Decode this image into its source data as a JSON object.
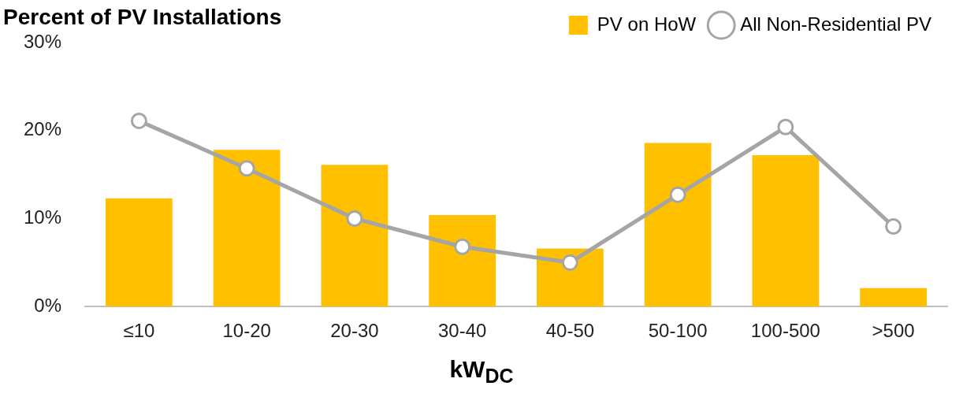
{
  "chart_data": {
    "type": "bar",
    "title": "Percent of PV Installations",
    "xlabel": "kW$_{DC}$",
    "categories": [
      "≤10",
      "10-20",
      "20-30",
      "30-40",
      "40-50",
      "50-100",
      "100-500",
      ">500"
    ],
    "series": [
      {
        "name": "PV on HoW",
        "color": "#ffc000",
        "values": [
          12.3,
          17.8,
          16.1,
          10.4,
          6.6,
          18.6,
          17.2,
          2.1
        ]
      },
      {
        "name": "All Non-Residential PV",
        "type": "line",
        "color": "#a5a5a5",
        "marker": "circle",
        "values": [
          21.1,
          15.7,
          10.0,
          6.8,
          5.0,
          12.7,
          20.4,
          9.1
        ]
      }
    ],
    "ylim": [
      0,
      30
    ],
    "yticks": [
      {
        "value": 0,
        "label": "0%"
      },
      {
        "value": 10,
        "label": "10%"
      },
      {
        "value": 20,
        "label": "20%"
      },
      {
        "value": 30,
        "label": "30%"
      }
    ],
    "grid": false,
    "legend": "top right"
  }
}
